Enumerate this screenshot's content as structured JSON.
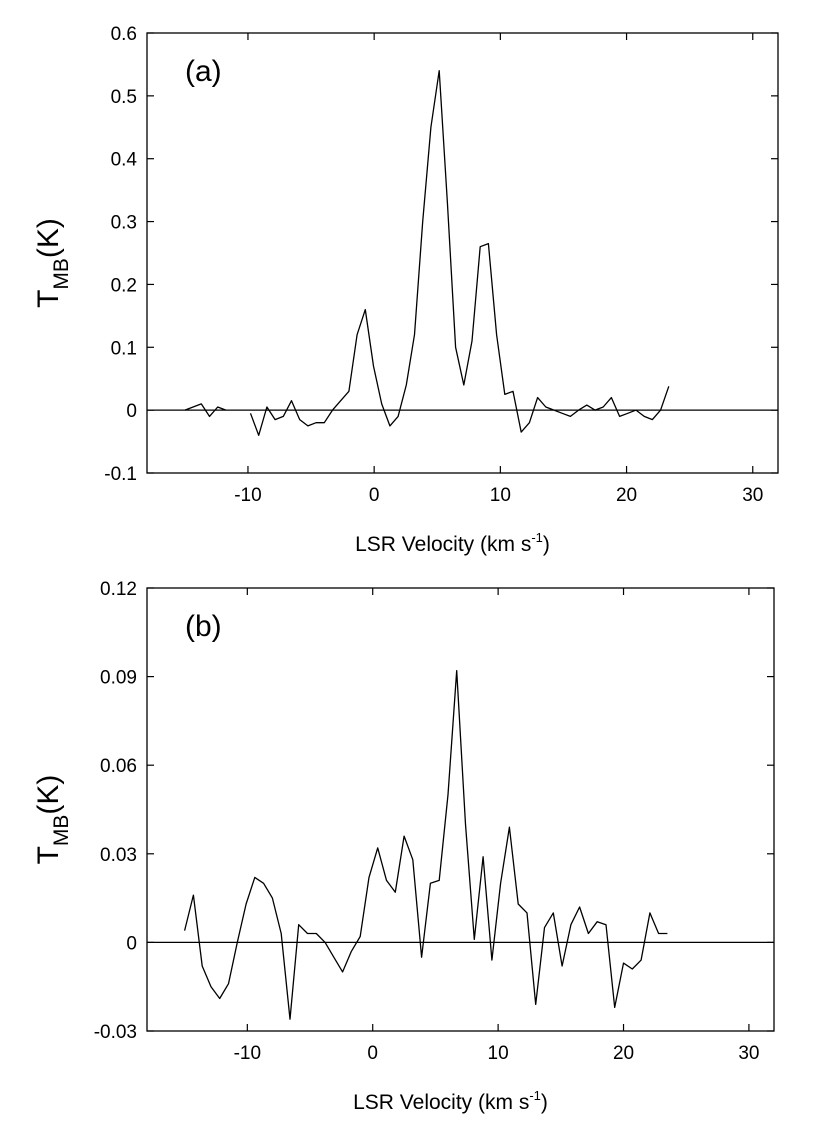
{
  "chart_data": [
    {
      "type": "line",
      "panel_label": "(a)",
      "xlabel": "LSR Velocity (km s",
      "xlabel_sup": "-1",
      "xlabel_close": ")",
      "ylabel": "T",
      "ylabel_sub": "MB",
      "ylabel_unit": "(K)",
      "xlim": [
        -18,
        32
      ],
      "ylim": [
        -0.1,
        0.6
      ],
      "xticks": [
        -10,
        0,
        10,
        20,
        30
      ],
      "xtick_labels": [
        "-10",
        "0",
        "10",
        "20",
        "30"
      ],
      "yticks": [
        -0.1,
        0,
        0.1,
        0.2,
        0.3,
        0.4,
        0.5,
        0.6
      ],
      "ytick_labels": [
        "-0.1",
        "0",
        "0.1",
        "0.2",
        "0.3",
        "0.4",
        "0.5",
        "0.6"
      ],
      "grid": false,
      "zero_line": true,
      "series": [
        {
          "x": [
            -15,
            -14.35,
            -13.7,
            -13.05,
            -12.4,
            -11.75,
            -11.1,
            -10.45,
            -9.8,
            -9.15,
            -8.5,
            -7.85,
            -7.2,
            -6.55,
            -5.9,
            -5.25,
            -4.6,
            -3.95,
            -3.3,
            -2.65,
            -2.0,
            -1.35,
            -0.7,
            -0.05,
            0.6,
            1.25,
            1.9,
            2.55,
            3.2,
            3.85,
            4.5,
            5.15,
            5.8,
            6.45,
            7.1,
            7.75,
            8.4,
            9.05,
            9.7,
            10.35,
            11.0,
            11.65,
            12.3,
            12.95,
            13.6,
            14.25,
            14.9,
            15.55,
            16.2,
            16.85,
            17.5,
            18.15,
            18.8,
            19.45,
            20.1,
            20.75,
            21.4,
            22.05,
            22.7,
            23.35,
            24.0,
            24.65,
            25.3,
            25.95,
            26.6,
            27.25,
            27.9,
            28.55,
            29.2,
            29.85
          ],
          "values": [
            0.0,
            0.005,
            0.01,
            -0.01,
            0.005,
            0.0,
            null,
            null,
            -0.005,
            -0.04,
            0.005,
            -0.015,
            -0.01,
            0.015,
            -0.015,
            -0.025,
            -0.02,
            -0.02,
            0.0,
            0.015,
            0.03,
            0.12,
            0.16,
            0.07,
            0.01,
            -0.025,
            -0.01,
            0.04,
            0.12,
            0.3,
            0.45,
            0.54,
            0.33,
            0.1,
            0.04,
            0.11,
            0.26,
            0.265,
            0.12,
            0.025,
            0.03,
            -0.035,
            -0.02,
            0.02,
            0.005,
            0.0,
            -0.005,
            -0.01,
            0.0,
            0.008,
            0.0,
            0.005,
            0.02,
            -0.01,
            -0.005,
            0.0,
            -0.01,
            -0.015,
            0.0,
            0.038,
            null,
            null,
            null,
            null,
            null,
            null,
            null,
            null,
            null,
            null
          ]
        }
      ]
    },
    {
      "type": "line",
      "panel_label": "(b)",
      "xlabel": "LSR Velocity (km s",
      "xlabel_sup": "-1",
      "xlabel_close": ")",
      "ylabel": "T",
      "ylabel_sub": "MB",
      "ylabel_unit": "(K)",
      "xlim": [
        -18,
        32
      ],
      "ylim": [
        -0.03,
        0.12
      ],
      "xticks": [
        -10,
        0,
        10,
        20,
        30
      ],
      "xtick_labels": [
        "-10",
        "0",
        "10",
        "20",
        "30"
      ],
      "yticks": [
        -0.03,
        0,
        0.03,
        0.06,
        0.09,
        0.12
      ],
      "ytick_labels": [
        "-0.03",
        "0",
        "0.03",
        "0.06",
        "0.09",
        "0.12"
      ],
      "grid": false,
      "zero_line": true,
      "series": [
        {
          "x": [
            -15,
            -14.3,
            -13.6,
            -12.9,
            -12.2,
            -11.5,
            -10.8,
            -10.1,
            -9.4,
            -8.7,
            -8.0,
            -7.3,
            -6.6,
            -5.9,
            -5.2,
            -4.5,
            -3.8,
            -3.1,
            -2.4,
            -1.7,
            -1.0,
            -0.3,
            0.4,
            1.1,
            1.8,
            2.5,
            3.2,
            3.9,
            4.6,
            5.3,
            6.0,
            6.7,
            7.4,
            8.1,
            8.8,
            9.5,
            10.2,
            10.9,
            11.6,
            12.3,
            13.0,
            13.7,
            14.4,
            15.1,
            15.8,
            16.5,
            17.2,
            17.9,
            18.6,
            19.3,
            20.0,
            20.7,
            21.4,
            22.1,
            22.8,
            23.5,
            24.2,
            24.9,
            25.6,
            26.3,
            27.0,
            27.7,
            28.4,
            29.1,
            29.8
          ],
          "values": [
            0.004,
            0.016,
            -0.008,
            -0.015,
            -0.019,
            -0.014,
            0.0,
            0.013,
            0.022,
            0.02,
            0.015,
            0.003,
            -0.026,
            0.006,
            0.003,
            0.003,
            0.0,
            -0.005,
            -0.01,
            -0.003,
            0.002,
            0.022,
            0.032,
            0.021,
            0.017,
            0.036,
            0.028,
            -0.005,
            0.02,
            0.021,
            0.05,
            0.092,
            0.04,
            0.001,
            0.029,
            -0.006,
            0.02,
            0.039,
            0.013,
            0.01,
            -0.021,
            0.005,
            0.01,
            -0.008,
            0.006,
            0.012,
            0.003,
            0.007,
            0.006,
            -0.022,
            -0.007,
            -0.009,
            -0.006,
            0.01,
            0.003,
            0.003,
            null,
            null,
            null,
            null,
            null,
            null,
            null,
            null,
            null
          ]
        }
      ]
    }
  ]
}
